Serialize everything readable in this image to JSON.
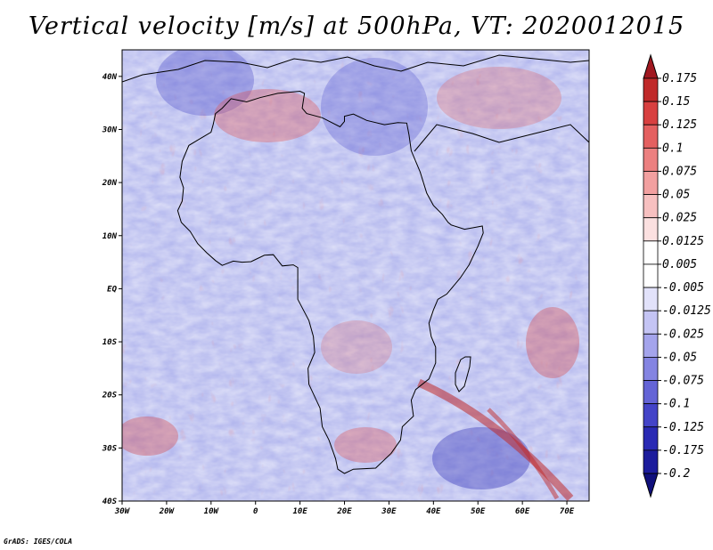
{
  "title": "Vertical velocity [m/s] at 500hPa, VT: 2020012015",
  "credit": "GrADS: IGES/COLA",
  "map": {
    "lon_range": [
      -30,
      75
    ],
    "lat_range": [
      -40,
      45
    ],
    "lat_ticks": [
      {
        "value": 40,
        "label": "40N"
      },
      {
        "value": 30,
        "label": "30N"
      },
      {
        "value": 20,
        "label": "20N"
      },
      {
        "value": 10,
        "label": "10N"
      },
      {
        "value": 0,
        "label": "EQ"
      },
      {
        "value": -10,
        "label": "10S"
      },
      {
        "value": -20,
        "label": "20S"
      },
      {
        "value": -30,
        "label": "30S"
      },
      {
        "value": -40,
        "label": "40S"
      }
    ],
    "lon_ticks": [
      {
        "value": -30,
        "label": "30W"
      },
      {
        "value": -20,
        "label": "20W"
      },
      {
        "value": -10,
        "label": "10W"
      },
      {
        "value": 0,
        "label": "0"
      },
      {
        "value": 10,
        "label": "10E"
      },
      {
        "value": 20,
        "label": "20E"
      },
      {
        "value": 30,
        "label": "30E"
      },
      {
        "value": 40,
        "label": "40E"
      },
      {
        "value": 50,
        "label": "50E"
      },
      {
        "value": 60,
        "label": "60E"
      },
      {
        "value": 70,
        "label": "70E"
      }
    ]
  },
  "colorbar": {
    "levels": [
      "0.175",
      "0.15",
      "0.125",
      "0.1",
      "0.075",
      "0.05",
      "0.025",
      "0.0125",
      "0.005",
      "-0.005",
      "-0.0125",
      "-0.025",
      "-0.05",
      "-0.075",
      "-0.1",
      "-0.125",
      "-0.175",
      "-0.2"
    ],
    "colors": [
      "#a01820",
      "#c02a2a",
      "#d84040",
      "#e46060",
      "#ec8080",
      "#f2a0a0",
      "#f7c0c0",
      "#fbe0e0",
      "#ffffff",
      "#ffffff",
      "#e2e2fa",
      "#c4c4f4",
      "#a4a4ec",
      "#8484e2",
      "#6464d6",
      "#4444c8",
      "#2a2ab4",
      "#1c1c9c",
      "#10107c"
    ]
  },
  "africa_outline": [
    [
      -17,
      21
    ],
    [
      -16.5,
      24
    ],
    [
      -15,
      27
    ],
    [
      -13,
      28
    ],
    [
      -10,
      29.5
    ],
    [
      -9.5,
      31
    ],
    [
      -9,
      33
    ],
    [
      -7.5,
      34
    ],
    [
      -5.5,
      35.8
    ],
    [
      -2,
      35.2
    ],
    [
      1,
      36
    ],
    [
      5,
      36.8
    ],
    [
      10,
      37.2
    ],
    [
      11,
      36.8
    ],
    [
      10.5,
      34
    ],
    [
      11.5,
      33
    ],
    [
      15,
      32.2
    ],
    [
      19,
      30.5
    ],
    [
      20,
      31.5
    ],
    [
      20,
      32.5
    ],
    [
      22,
      32.9
    ],
    [
      25,
      31.7
    ],
    [
      29,
      30.9
    ],
    [
      32,
      31.3
    ],
    [
      34,
      31.2
    ],
    [
      34.5,
      29
    ],
    [
      35,
      26
    ],
    [
      37,
      22
    ],
    [
      38.5,
      18
    ],
    [
      40,
      15.7
    ],
    [
      42,
      14
    ],
    [
      43.3,
      12.5
    ],
    [
      44,
      12
    ],
    [
      47,
      11.2
    ],
    [
      51,
      11.8
    ],
    [
      51.2,
      10.5
    ],
    [
      50,
      8
    ],
    [
      48,
      4.5
    ],
    [
      46,
      2
    ],
    [
      43,
      -1
    ],
    [
      41,
      -2
    ],
    [
      40,
      -4
    ],
    [
      39,
      -6.5
    ],
    [
      39.5,
      -9
    ],
    [
      40.5,
      -11
    ],
    [
      40.5,
      -14
    ],
    [
      39,
      -17
    ],
    [
      36,
      -19
    ],
    [
      35,
      -21
    ],
    [
      35.5,
      -24
    ],
    [
      33,
      -26
    ],
    [
      32.6,
      -28.5
    ],
    [
      30.5,
      -31
    ],
    [
      27,
      -33.8
    ],
    [
      22,
      -34
    ],
    [
      20,
      -34.8
    ],
    [
      18.5,
      -34
    ],
    [
      18,
      -32
    ],
    [
      16.5,
      -28.5
    ],
    [
      15,
      -26
    ],
    [
      14.5,
      -22.5
    ],
    [
      12,
      -18
    ],
    [
      11.8,
      -15
    ],
    [
      13.3,
      -12
    ],
    [
      13,
      -9
    ],
    [
      12,
      -6
    ],
    [
      9.5,
      -2
    ],
    [
      9.5,
      2
    ],
    [
      9.5,
      4
    ],
    [
      8.5,
      4.5
    ],
    [
      6,
      4.3
    ],
    [
      4,
      6.4
    ],
    [
      2,
      6.3
    ],
    [
      -1,
      5.1
    ],
    [
      -3,
      5
    ],
    [
      -5,
      5.2
    ],
    [
      -7.5,
      4.4
    ],
    [
      -9,
      5.3
    ],
    [
      -11,
      6.8
    ],
    [
      -13,
      8.5
    ],
    [
      -14.7,
      10.8
    ],
    [
      -16.7,
      12.5
    ],
    [
      -17.5,
      14.7
    ],
    [
      -16.5,
      16.5
    ],
    [
      -16.2,
      19
    ]
  ]
}
